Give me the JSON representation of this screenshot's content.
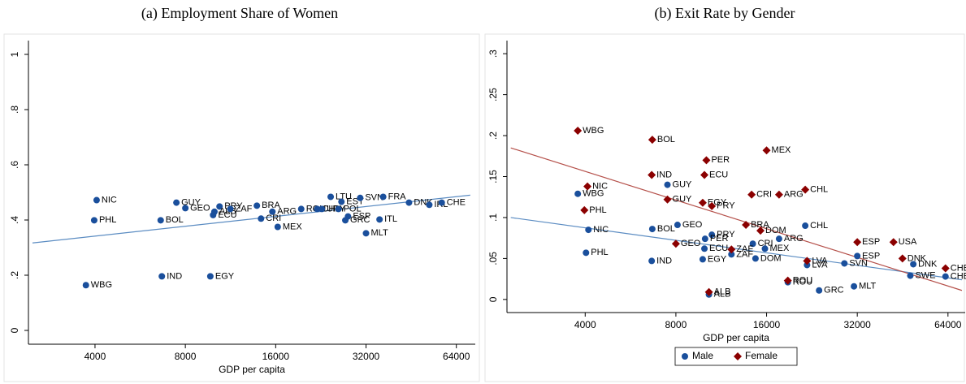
{
  "chart_data": [
    {
      "type": "scatter",
      "title": "(a) Employment Share of Women",
      "xlabel": "GDP per capita",
      "log_x": true,
      "xlim": [
        2400,
        74000
      ],
      "ylim": [
        -0.05,
        1.05
      ],
      "xticks": [
        4000,
        8000,
        16000,
        32000,
        64000
      ],
      "yticks": [
        0,
        {
          "value": 0.2,
          "label": ".2"
        },
        {
          "value": 0.4,
          "label": ".4"
        },
        {
          "value": 0.6,
          "label": ".6"
        },
        {
          "value": 0.8,
          "label": ".8"
        },
        1
      ],
      "color": "#1a4f9c",
      "labels": [
        "NIC",
        "PHL",
        "WBG",
        "GUY",
        "GEO",
        "BOL",
        "IND",
        "EGY",
        "PRY",
        "ALB",
        "ECU",
        "ZAF",
        "BRA",
        "CRI",
        "MEX",
        "ARG",
        "ROU",
        "CHL",
        "URY",
        "LTU",
        "EST",
        "SVN",
        "POL",
        "ESP",
        "GRC",
        "ITL",
        "MLT",
        "FRA",
        "DNK",
        "IRL",
        "CHE"
      ],
      "x": [
        4050,
        3975,
        3730,
        7470,
        8000,
        6620,
        6680,
        9690,
        10400,
        10000,
        9900,
        11300,
        13850,
        14300,
        16250,
        15600,
        19460,
        22000,
        22800,
        24400,
        26500,
        30600,
        25900,
        27870,
        27300,
        35500,
        32000,
        36500,
        44500,
        52000,
        57200
      ],
      "values": [
        0.472,
        0.399,
        0.164,
        0.463,
        0.443,
        0.399,
        0.196,
        0.196,
        0.449,
        0.43,
        0.418,
        0.44,
        0.452,
        0.405,
        0.375,
        0.43,
        0.44,
        0.44,
        0.44,
        0.484,
        0.466,
        0.48,
        0.44,
        0.413,
        0.399,
        0.402,
        0.352,
        0.484,
        0.463,
        0.455,
        0.463
      ],
      "fit": {
        "x": [
          2476,
          71200
        ],
        "values": [
          0.317,
          0.49
        ],
        "color": "#5b8cc2"
      }
    },
    {
      "type": "scatter",
      "title": "(b) Exit Rate by Gender",
      "xlabel": "GDP per capita",
      "log_x": true,
      "legend": "bottom",
      "xlim": [
        2200,
        73000
      ],
      "ylim": [
        -0.016,
        0.316
      ],
      "xticks": [
        4000,
        8000,
        16000,
        32000,
        64000
      ],
      "yticks": [
        0,
        {
          "value": 0.05,
          "label": ".05"
        },
        {
          "value": 0.1,
          "label": ".1"
        },
        {
          "value": 0.15,
          "label": ".15"
        },
        {
          "value": 0.2,
          "label": ".2"
        },
        {
          "value": 0.25,
          "label": ".25"
        },
        {
          "value": 0.3,
          "label": ".3"
        }
      ],
      "series": [
        {
          "name": "Male",
          "color": "#1a4f9c",
          "marker": "circle",
          "labels": [
            "WBG",
            "NIC",
            "PHL",
            "GUY",
            "BOL",
            "GEO",
            "IND",
            "PRY",
            "PER",
            "ECU",
            "EGY",
            "ZAF",
            "ALB",
            "CRI",
            "MEX",
            "DOM",
            "ARG",
            "CHL",
            "LVA",
            "ROU",
            "ESP",
            "SVN",
            "MLT",
            "GRC",
            "SWE",
            "DNK",
            "CHE"
          ],
          "x": [
            3780,
            4100,
            4025,
            7500,
            6680,
            8100,
            6650,
            10530,
            10000,
            9950,
            9820,
            12230,
            10300,
            14400,
            15800,
            14700,
            17600,
            21500,
            21800,
            18820,
            32000,
            29000,
            31200,
            23900,
            48000,
            49100,
            62800
          ],
          "values": [
            0.129,
            0.085,
            0.057,
            0.14,
            0.086,
            0.091,
            0.047,
            0.079,
            0.074,
            0.062,
            0.049,
            0.055,
            0.006,
            0.068,
            0.062,
            0.05,
            0.074,
            0.09,
            0.042,
            0.021,
            0.053,
            0.044,
            0.016,
            0.011,
            0.029,
            0.043,
            0.028
          ],
          "fit": {
            "x": [
              2265,
              71200
            ],
            "values": [
              0.1,
              0.024
            ],
            "color": "#5b8cc2"
          }
        },
        {
          "name": "Female",
          "color": "#8b0000",
          "marker": "diamond",
          "labels": [
            "WBG",
            "NIC",
            "PHL",
            "BOL",
            "IND",
            "GUY",
            "PER",
            "ECU",
            "EGY",
            "PRY",
            "MEX",
            "CRI",
            "ARG",
            "CHL",
            "BRA",
            "DOM",
            "GEO",
            "ZAF",
            "ALB",
            "ESP",
            "USA",
            "DNK",
            "CHE",
            "LVA",
            "ROU"
          ],
          "x": [
            3780,
            4070,
            3975,
            6680,
            6650,
            7500,
            10100,
            9950,
            9820,
            10530,
            16000,
            14270,
            17600,
            21500,
            13660,
            15270,
            8000,
            12230,
            10300,
            32000,
            42200,
            45200,
            62800,
            21800,
            18820
          ],
          "values": [
            0.206,
            0.138,
            0.109,
            0.195,
            0.152,
            0.122,
            0.17,
            0.152,
            0.118,
            0.114,
            0.182,
            0.128,
            0.128,
            0.134,
            0.091,
            0.084,
            0.068,
            0.061,
            0.009,
            0.07,
            0.07,
            0.05,
            0.038,
            0.047,
            0.023
          ],
          "fit": {
            "x": [
              2265,
              71200
            ],
            "values": [
              0.185,
              0.011
            ],
            "color": "#b5504a"
          }
        }
      ]
    }
  ]
}
